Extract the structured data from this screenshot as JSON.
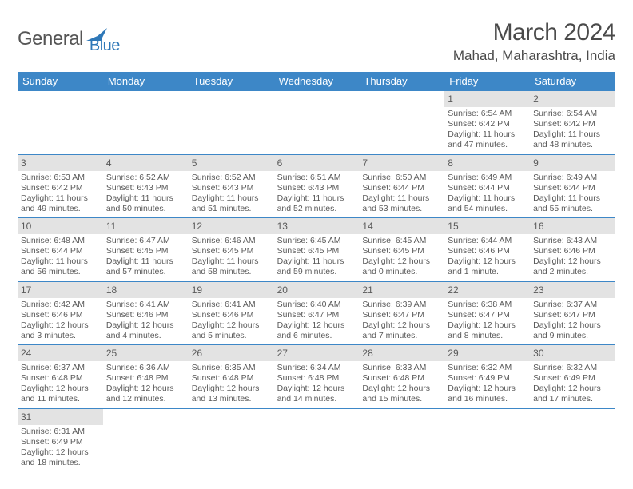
{
  "brand": {
    "part1": "General",
    "part2": "Blue"
  },
  "title": "March 2024",
  "location": "Mahad, Maharashtra, India",
  "colors": {
    "header_bg": "#3d87c7",
    "datebar_bg": "#e3e3e3",
    "text_dark": "#4a4a4a",
    "text_body": "#5a5a5a",
    "brand_blue": "#2f78b8",
    "brand_gray": "#555555",
    "row_divider": "#3d87c7",
    "background": "#ffffff"
  },
  "day_names": [
    "Sunday",
    "Monday",
    "Tuesday",
    "Wednesday",
    "Thursday",
    "Friday",
    "Saturday"
  ],
  "weeks": [
    [
      {
        "empty": true
      },
      {
        "empty": true
      },
      {
        "empty": true
      },
      {
        "empty": true
      },
      {
        "empty": true
      },
      {
        "date": "1",
        "sunrise": "Sunrise: 6:54 AM",
        "sunset": "Sunset: 6:42 PM",
        "day1": "Daylight: 11 hours",
        "day2": "and 47 minutes."
      },
      {
        "date": "2",
        "sunrise": "Sunrise: 6:54 AM",
        "sunset": "Sunset: 6:42 PM",
        "day1": "Daylight: 11 hours",
        "day2": "and 48 minutes."
      }
    ],
    [
      {
        "date": "3",
        "sunrise": "Sunrise: 6:53 AM",
        "sunset": "Sunset: 6:42 PM",
        "day1": "Daylight: 11 hours",
        "day2": "and 49 minutes."
      },
      {
        "date": "4",
        "sunrise": "Sunrise: 6:52 AM",
        "sunset": "Sunset: 6:43 PM",
        "day1": "Daylight: 11 hours",
        "day2": "and 50 minutes."
      },
      {
        "date": "5",
        "sunrise": "Sunrise: 6:52 AM",
        "sunset": "Sunset: 6:43 PM",
        "day1": "Daylight: 11 hours",
        "day2": "and 51 minutes."
      },
      {
        "date": "6",
        "sunrise": "Sunrise: 6:51 AM",
        "sunset": "Sunset: 6:43 PM",
        "day1": "Daylight: 11 hours",
        "day2": "and 52 minutes."
      },
      {
        "date": "7",
        "sunrise": "Sunrise: 6:50 AM",
        "sunset": "Sunset: 6:44 PM",
        "day1": "Daylight: 11 hours",
        "day2": "and 53 minutes."
      },
      {
        "date": "8",
        "sunrise": "Sunrise: 6:49 AM",
        "sunset": "Sunset: 6:44 PM",
        "day1": "Daylight: 11 hours",
        "day2": "and 54 minutes."
      },
      {
        "date": "9",
        "sunrise": "Sunrise: 6:49 AM",
        "sunset": "Sunset: 6:44 PM",
        "day1": "Daylight: 11 hours",
        "day2": "and 55 minutes."
      }
    ],
    [
      {
        "date": "10",
        "sunrise": "Sunrise: 6:48 AM",
        "sunset": "Sunset: 6:44 PM",
        "day1": "Daylight: 11 hours",
        "day2": "and 56 minutes."
      },
      {
        "date": "11",
        "sunrise": "Sunrise: 6:47 AM",
        "sunset": "Sunset: 6:45 PM",
        "day1": "Daylight: 11 hours",
        "day2": "and 57 minutes."
      },
      {
        "date": "12",
        "sunrise": "Sunrise: 6:46 AM",
        "sunset": "Sunset: 6:45 PM",
        "day1": "Daylight: 11 hours",
        "day2": "and 58 minutes."
      },
      {
        "date": "13",
        "sunrise": "Sunrise: 6:45 AM",
        "sunset": "Sunset: 6:45 PM",
        "day1": "Daylight: 11 hours",
        "day2": "and 59 minutes."
      },
      {
        "date": "14",
        "sunrise": "Sunrise: 6:45 AM",
        "sunset": "Sunset: 6:45 PM",
        "day1": "Daylight: 12 hours",
        "day2": "and 0 minutes."
      },
      {
        "date": "15",
        "sunrise": "Sunrise: 6:44 AM",
        "sunset": "Sunset: 6:46 PM",
        "day1": "Daylight: 12 hours",
        "day2": "and 1 minute."
      },
      {
        "date": "16",
        "sunrise": "Sunrise: 6:43 AM",
        "sunset": "Sunset: 6:46 PM",
        "day1": "Daylight: 12 hours",
        "day2": "and 2 minutes."
      }
    ],
    [
      {
        "date": "17",
        "sunrise": "Sunrise: 6:42 AM",
        "sunset": "Sunset: 6:46 PM",
        "day1": "Daylight: 12 hours",
        "day2": "and 3 minutes."
      },
      {
        "date": "18",
        "sunrise": "Sunrise: 6:41 AM",
        "sunset": "Sunset: 6:46 PM",
        "day1": "Daylight: 12 hours",
        "day2": "and 4 minutes."
      },
      {
        "date": "19",
        "sunrise": "Sunrise: 6:41 AM",
        "sunset": "Sunset: 6:46 PM",
        "day1": "Daylight: 12 hours",
        "day2": "and 5 minutes."
      },
      {
        "date": "20",
        "sunrise": "Sunrise: 6:40 AM",
        "sunset": "Sunset: 6:47 PM",
        "day1": "Daylight: 12 hours",
        "day2": "and 6 minutes."
      },
      {
        "date": "21",
        "sunrise": "Sunrise: 6:39 AM",
        "sunset": "Sunset: 6:47 PM",
        "day1": "Daylight: 12 hours",
        "day2": "and 7 minutes."
      },
      {
        "date": "22",
        "sunrise": "Sunrise: 6:38 AM",
        "sunset": "Sunset: 6:47 PM",
        "day1": "Daylight: 12 hours",
        "day2": "and 8 minutes."
      },
      {
        "date": "23",
        "sunrise": "Sunrise: 6:37 AM",
        "sunset": "Sunset: 6:47 PM",
        "day1": "Daylight: 12 hours",
        "day2": "and 9 minutes."
      }
    ],
    [
      {
        "date": "24",
        "sunrise": "Sunrise: 6:37 AM",
        "sunset": "Sunset: 6:48 PM",
        "day1": "Daylight: 12 hours",
        "day2": "and 11 minutes."
      },
      {
        "date": "25",
        "sunrise": "Sunrise: 6:36 AM",
        "sunset": "Sunset: 6:48 PM",
        "day1": "Daylight: 12 hours",
        "day2": "and 12 minutes."
      },
      {
        "date": "26",
        "sunrise": "Sunrise: 6:35 AM",
        "sunset": "Sunset: 6:48 PM",
        "day1": "Daylight: 12 hours",
        "day2": "and 13 minutes."
      },
      {
        "date": "27",
        "sunrise": "Sunrise: 6:34 AM",
        "sunset": "Sunset: 6:48 PM",
        "day1": "Daylight: 12 hours",
        "day2": "and 14 minutes."
      },
      {
        "date": "28",
        "sunrise": "Sunrise: 6:33 AM",
        "sunset": "Sunset: 6:48 PM",
        "day1": "Daylight: 12 hours",
        "day2": "and 15 minutes."
      },
      {
        "date": "29",
        "sunrise": "Sunrise: 6:32 AM",
        "sunset": "Sunset: 6:49 PM",
        "day1": "Daylight: 12 hours",
        "day2": "and 16 minutes."
      },
      {
        "date": "30",
        "sunrise": "Sunrise: 6:32 AM",
        "sunset": "Sunset: 6:49 PM",
        "day1": "Daylight: 12 hours",
        "day2": "and 17 minutes."
      }
    ],
    [
      {
        "date": "31",
        "sunrise": "Sunrise: 6:31 AM",
        "sunset": "Sunset: 6:49 PM",
        "day1": "Daylight: 12 hours",
        "day2": "and 18 minutes."
      },
      {
        "empty": true
      },
      {
        "empty": true
      },
      {
        "empty": true
      },
      {
        "empty": true
      },
      {
        "empty": true
      },
      {
        "empty": true
      }
    ]
  ]
}
